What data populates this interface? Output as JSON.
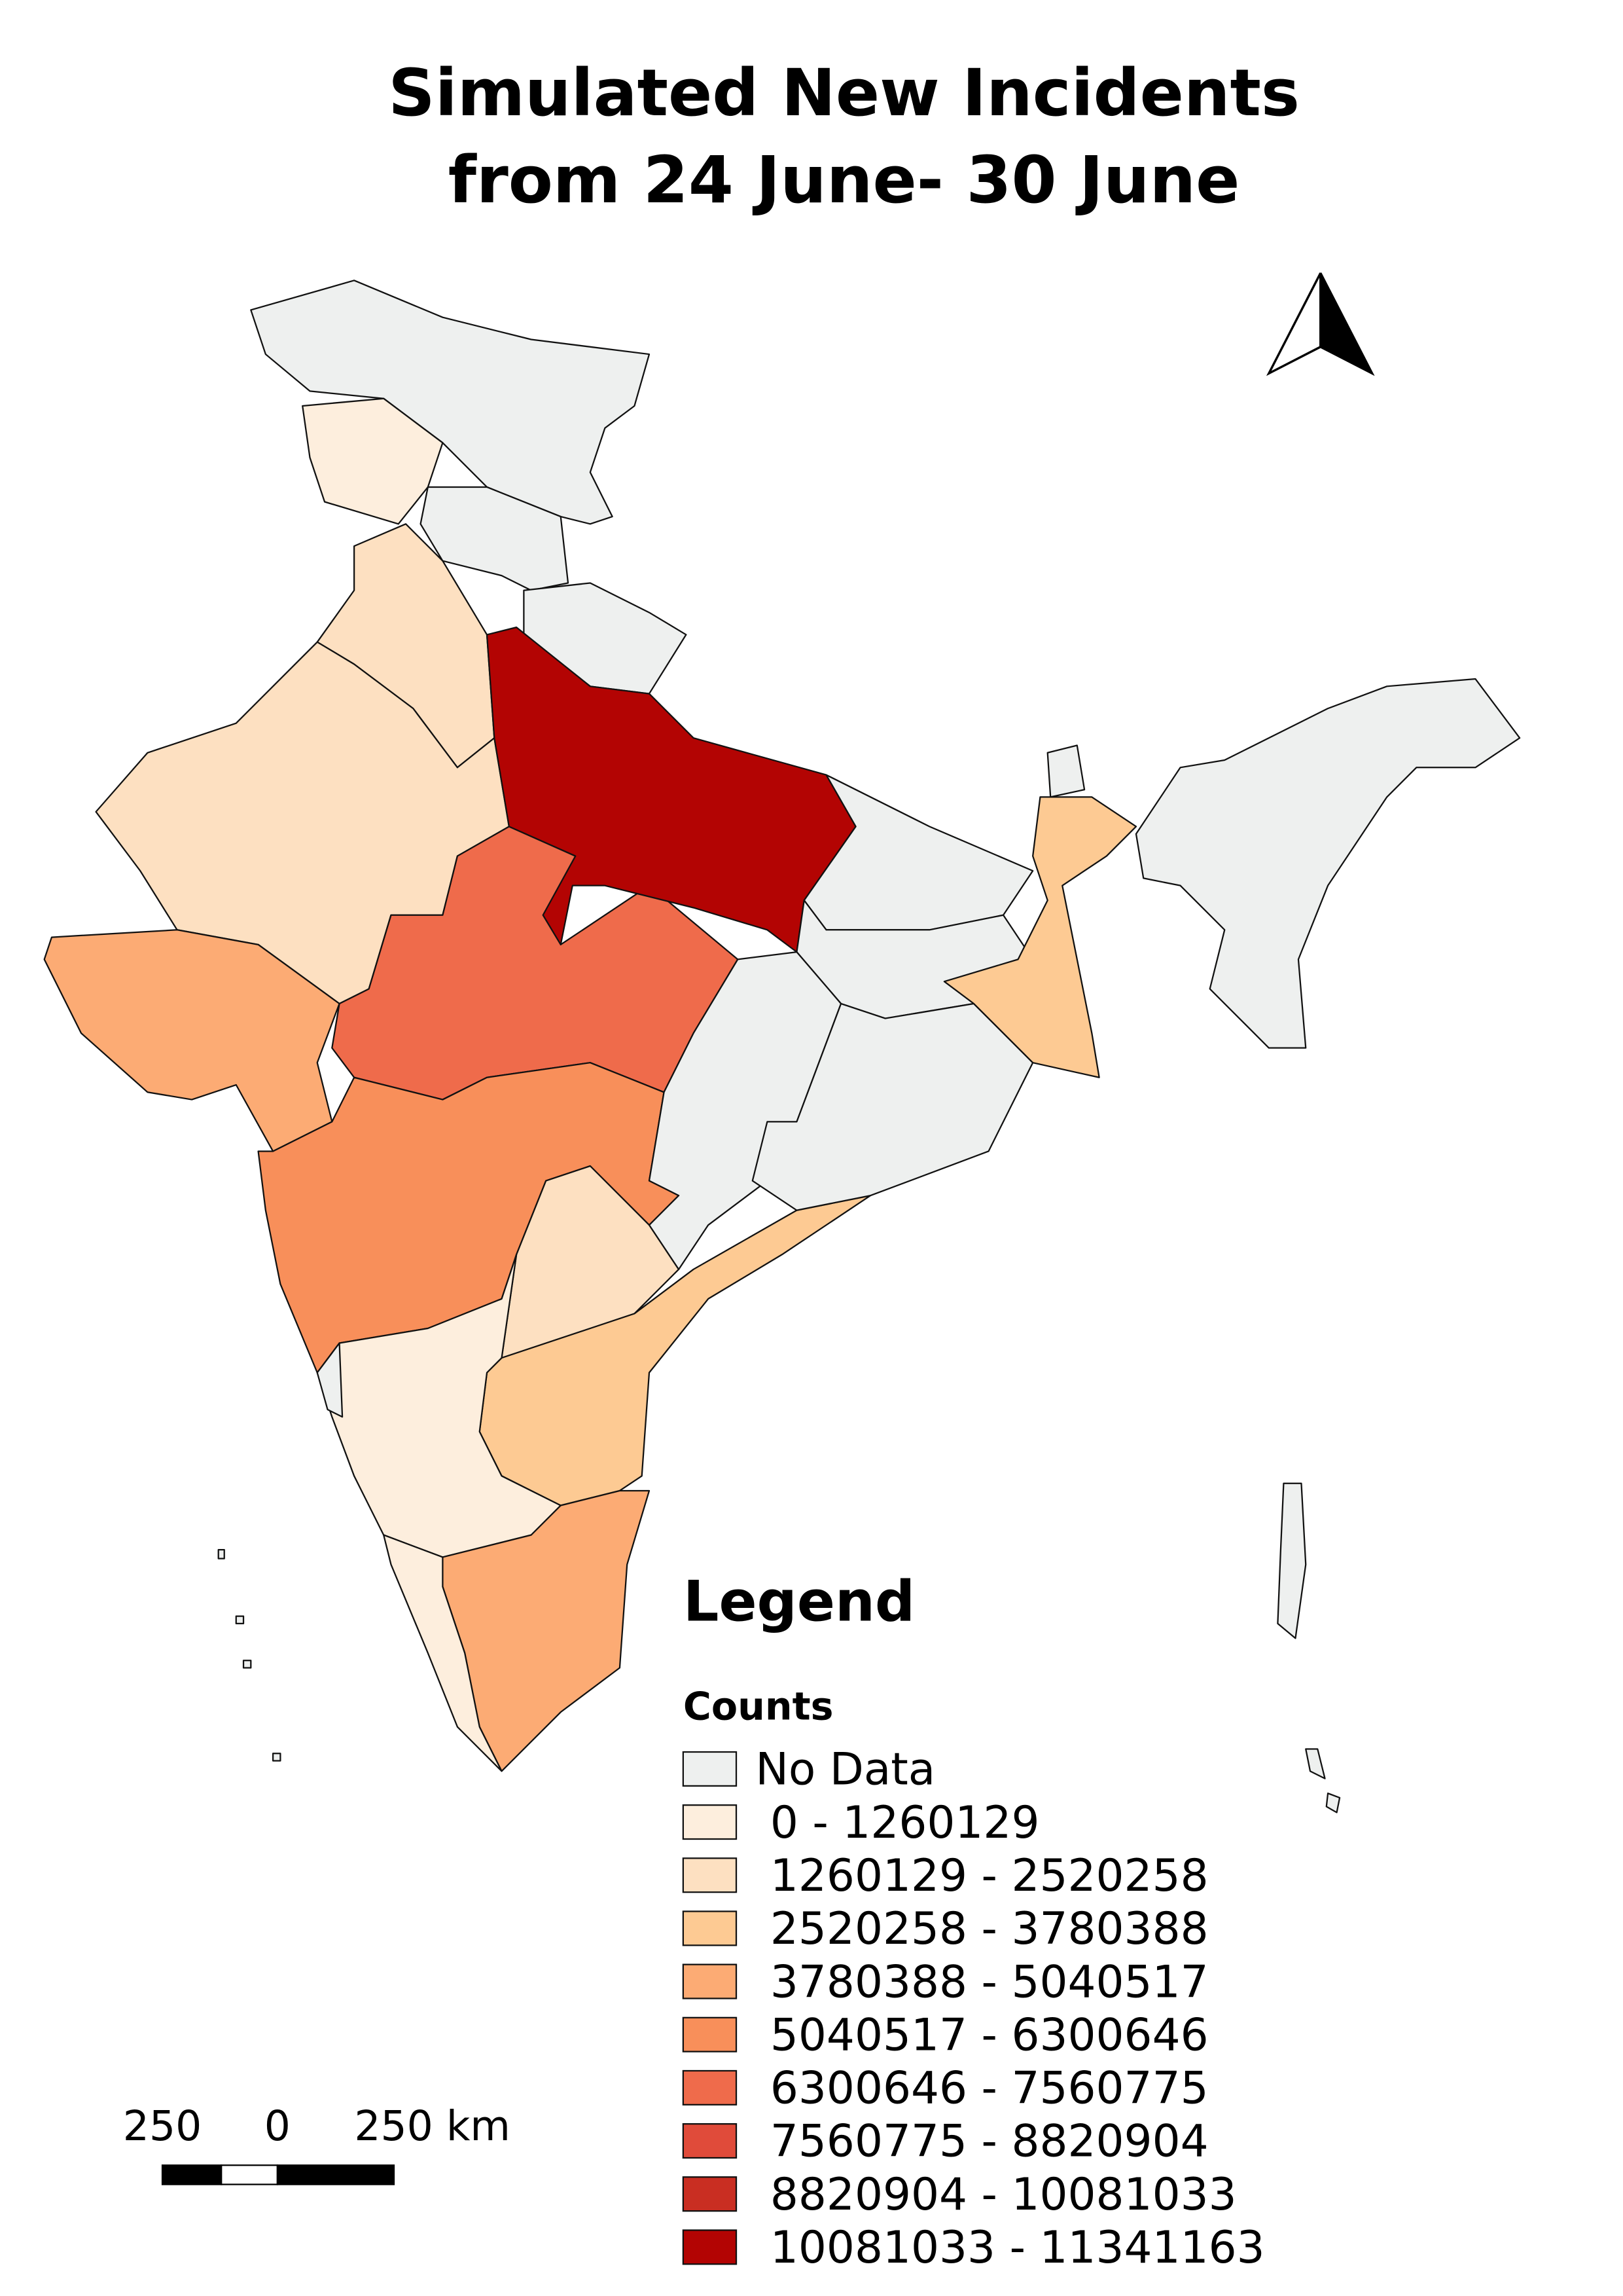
{
  "title": {
    "line1": "Simulated New Incidents",
    "line2": "from 24 June- 30 June"
  },
  "legend": {
    "title": "Legend",
    "subtitle": "Counts",
    "items": [
      {
        "label": "No Data",
        "color": "#eef0ef"
      },
      {
        "label": "0 - 1260129",
        "color": "#fdeedd"
      },
      {
        "label": "1260129 - 2520258",
        "color": "#fde0c1"
      },
      {
        "label": "2520258 - 3780388",
        "color": "#fdca93"
      },
      {
        "label": "3780388 - 5040517",
        "color": "#fcab74"
      },
      {
        "label": "5040517 - 6300646",
        "color": "#f88f5a"
      },
      {
        "label": "6300646 - 7560775",
        "color": "#ef6b4b"
      },
      {
        "label": "7560775 - 8820904",
        "color": "#e04b3a"
      },
      {
        "label": "8820904 - 10081033",
        "color": "#c92e22"
      },
      {
        "label": "10081033 - 11341163",
        "color": "#b30403"
      }
    ]
  },
  "scale_bar": {
    "left": "250",
    "middle": "0",
    "right": "250 km"
  }
}
